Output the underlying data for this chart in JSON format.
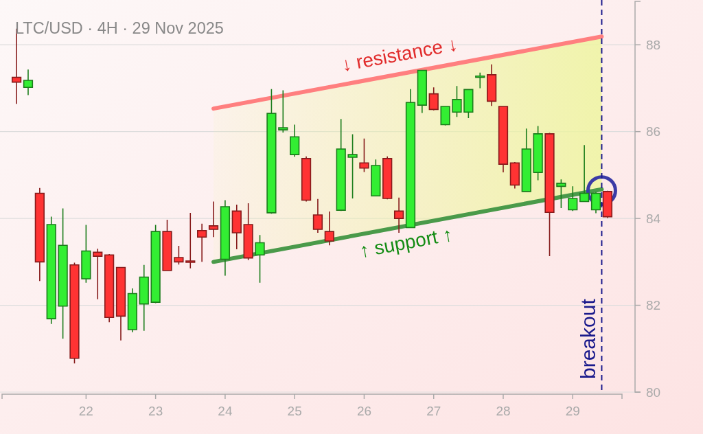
{
  "chart_data": {
    "type": "candlestick",
    "title": "LTC/USD · 4H · 29 Nov 2025",
    "x": [
      "2025-11-21T00:00",
      "2025-11-21T04:00",
      "2025-11-21T08:00",
      "2025-11-21T12:00",
      "2025-11-21T16:00",
      "2025-11-21T20:00",
      "2025-11-22T00:00",
      "2025-11-22T04:00",
      "2025-11-22T08:00",
      "2025-11-22T12:00",
      "2025-11-22T16:00",
      "2025-11-22T20:00",
      "2025-11-23T00:00",
      "2025-11-23T04:00",
      "2025-11-23T08:00",
      "2025-11-23T12:00",
      "2025-11-23T16:00",
      "2025-11-23T20:00",
      "2025-11-24T00:00",
      "2025-11-24T04:00",
      "2025-11-24T08:00",
      "2025-11-24T12:00",
      "2025-11-24T16:00",
      "2025-11-24T20:00",
      "2025-11-25T00:00",
      "2025-11-25T04:00",
      "2025-11-25T08:00",
      "2025-11-25T12:00",
      "2025-11-25T16:00",
      "2025-11-25T20:00",
      "2025-11-26T00:00",
      "2025-11-26T04:00",
      "2025-11-26T08:00",
      "2025-11-26T12:00",
      "2025-11-26T16:00",
      "2025-11-26T20:00",
      "2025-11-27T00:00",
      "2025-11-27T04:00",
      "2025-11-27T08:00",
      "2025-11-27T12:00",
      "2025-11-27T16:00",
      "2025-11-27T20:00",
      "2025-11-28T00:00",
      "2025-11-28T04:00",
      "2025-11-28T08:00",
      "2025-11-28T12:00",
      "2025-11-28T16:00",
      "2025-11-28T20:00",
      "2025-11-29T00:00",
      "2025-11-29T04:00",
      "2025-11-29T08:00",
      "2025-11-29T12:00"
    ],
    "ohlc": [
      [
        87.25,
        88.37,
        86.64,
        87.14
      ],
      [
        87.02,
        87.43,
        86.84,
        87.18
      ],
      [
        84.58,
        84.7,
        82.56,
        83.0
      ],
      [
        81.69,
        84.04,
        81.57,
        83.86
      ],
      [
        81.98,
        84.23,
        81.23,
        83.38
      ],
      [
        82.93,
        82.98,
        80.66,
        80.78
      ],
      [
        82.61,
        83.85,
        82.52,
        83.25
      ],
      [
        83.22,
        83.3,
        82.14,
        83.13
      ],
      [
        83.16,
        83.18,
        81.61,
        81.72
      ],
      [
        82.87,
        82.88,
        81.19,
        81.75
      ],
      [
        81.44,
        82.39,
        81.38,
        82.27
      ],
      [
        82.03,
        82.93,
        81.41,
        82.65
      ],
      [
        82.07,
        83.85,
        82.05,
        83.7
      ],
      [
        83.7,
        83.97,
        82.79,
        82.8
      ],
      [
        83.1,
        83.37,
        82.94,
        83.0
      ],
      [
        83.01,
        84.13,
        82.85,
        83.0
      ],
      [
        83.72,
        83.88,
        83.0,
        83.57
      ],
      [
        83.83,
        84.39,
        83.57,
        83.75
      ],
      [
        83.06,
        84.42,
        82.68,
        84.27
      ],
      [
        84.17,
        84.32,
        83.29,
        83.67
      ],
      [
        83.86,
        84.35,
        83.04,
        83.09
      ],
      [
        83.16,
        83.62,
        82.52,
        83.44
      ],
      [
        84.13,
        86.98,
        84.11,
        86.42
      ],
      [
        86.04,
        86.95,
        85.98,
        86.09
      ],
      [
        85.47,
        86.16,
        85.42,
        85.88
      ],
      [
        85.38,
        85.43,
        84.39,
        84.42
      ],
      [
        84.08,
        84.45,
        83.67,
        83.75
      ],
      [
        83.7,
        84.16,
        83.38,
        83.48
      ],
      [
        84.19,
        86.29,
        84.17,
        85.6
      ],
      [
        85.41,
        85.94,
        84.46,
        85.47
      ],
      [
        85.28,
        85.84,
        85.07,
        85.16
      ],
      [
        84.52,
        85.36,
        84.51,
        85.22
      ],
      [
        85.38,
        85.43,
        84.44,
        84.46
      ],
      [
        84.17,
        84.48,
        83.67,
        84.0
      ],
      [
        83.79,
        86.98,
        83.78,
        86.67
      ],
      [
        86.61,
        87.42,
        86.43,
        87.41
      ],
      [
        86.87,
        87.02,
        86.49,
        86.51
      ],
      [
        86.16,
        86.59,
        86.14,
        86.58
      ],
      [
        86.45,
        87.05,
        86.34,
        86.74
      ],
      [
        86.45,
        86.98,
        86.31,
        86.97
      ],
      [
        87.25,
        87.36,
        87.0,
        87.28
      ],
      [
        87.31,
        87.55,
        86.59,
        86.7
      ],
      [
        86.58,
        86.59,
        85.06,
        85.25
      ],
      [
        85.28,
        85.3,
        84.69,
        84.77
      ],
      [
        84.62,
        86.07,
        84.61,
        85.6
      ],
      [
        85.06,
        86.13,
        84.88,
        85.95
      ],
      [
        85.95,
        85.97,
        83.13,
        84.14
      ],
      [
        84.74,
        84.9,
        84.24,
        84.81
      ],
      [
        84.2,
        84.74,
        84.17,
        84.46
      ],
      [
        84.39,
        85.69,
        84.38,
        84.58
      ],
      [
        84.2,
        84.61,
        84.12,
        84.58
      ],
      [
        84.62,
        84.64,
        84.01,
        84.04
      ]
    ],
    "colors": [
      "#ff3333",
      "#33ee33",
      "#ff3333",
      "#33ee33",
      "#33ee33",
      "#ff3333",
      "#33ee33",
      "#ff3333",
      "#ff3333",
      "#ff3333",
      "#33ee33",
      "#33ee33",
      "#33ee33",
      "#ff3333",
      "#ff3333",
      "#ff3333",
      "#ff3333",
      "#ff3333",
      "#33ee33",
      "#ff3333",
      "#ff3333",
      "#33ee33",
      "#33ee33",
      "#33ee33",
      "#33ee33",
      "#ff3333",
      "#ff3333",
      "#ff3333",
      "#33ee33",
      "#33ee33",
      "#ff3333",
      "#33ee33",
      "#ff3333",
      "#ff3333",
      "#33ee33",
      "#33ee33",
      "#ff3333",
      "#33ee33",
      "#33ee33",
      "#33ee33",
      "#33ee33",
      "#ff3333",
      "#ff3333",
      "#ff3333",
      "#33ee33",
      "#33ee33",
      "#ff3333",
      "#33ee33",
      "#33ee33",
      "#33ee33",
      "#33ee33",
      "#ff3333"
    ],
    "series": [
      {
        "type": "line",
        "name": "↓ resistance ↓",
        "x": [
          "2025-11-23T20:00",
          "2025-11-29T10:00"
        ],
        "values": [
          86.53,
          88.19
        ],
        "color": "#ff7f7f"
      },
      {
        "type": "line",
        "name": "↑ support ↑",
        "x": [
          "2025-11-23T20:00",
          "2025-11-29T10:00"
        ],
        "values": [
          83.0,
          84.67
        ],
        "lower": [
          83.0,
          84.67
        ],
        "upper": [
          86.53,
          88.19
        ],
        "color": "#4a9a4a"
      },
      {
        "type": "scatter",
        "x": [
          "2025-11-29T10:00"
        ],
        "values": [
          84.64
        ],
        "color": "#3b3ba6",
        "marker": "circle"
      }
    ],
    "ref_lines": [
      {
        "axis": "x",
        "value": "2025-11-29T10:00",
        "label": "breakout",
        "color": "#1a1a8c",
        "line_style": "dashed"
      }
    ],
    "xlim": [
      "2025-11-20T19:00",
      "2025-11-29T17:00"
    ],
    "xticks": [
      {
        "value": "2025-11-22",
        "label": "22"
      },
      {
        "value": "2025-11-23",
        "label": "23"
      },
      {
        "value": "2025-11-24",
        "label": "24"
      },
      {
        "value": "2025-11-25",
        "label": "25"
      },
      {
        "value": "2025-11-26",
        "label": "26"
      },
      {
        "value": "2025-11-27",
        "label": "27"
      },
      {
        "value": "2025-11-28",
        "label": "28"
      },
      {
        "value": "2025-11-29",
        "label": "29"
      }
    ],
    "ylim": [
      80,
      89
    ],
    "yticks": [
      80,
      82,
      84,
      86,
      88
    ],
    "grid": "y"
  }
}
